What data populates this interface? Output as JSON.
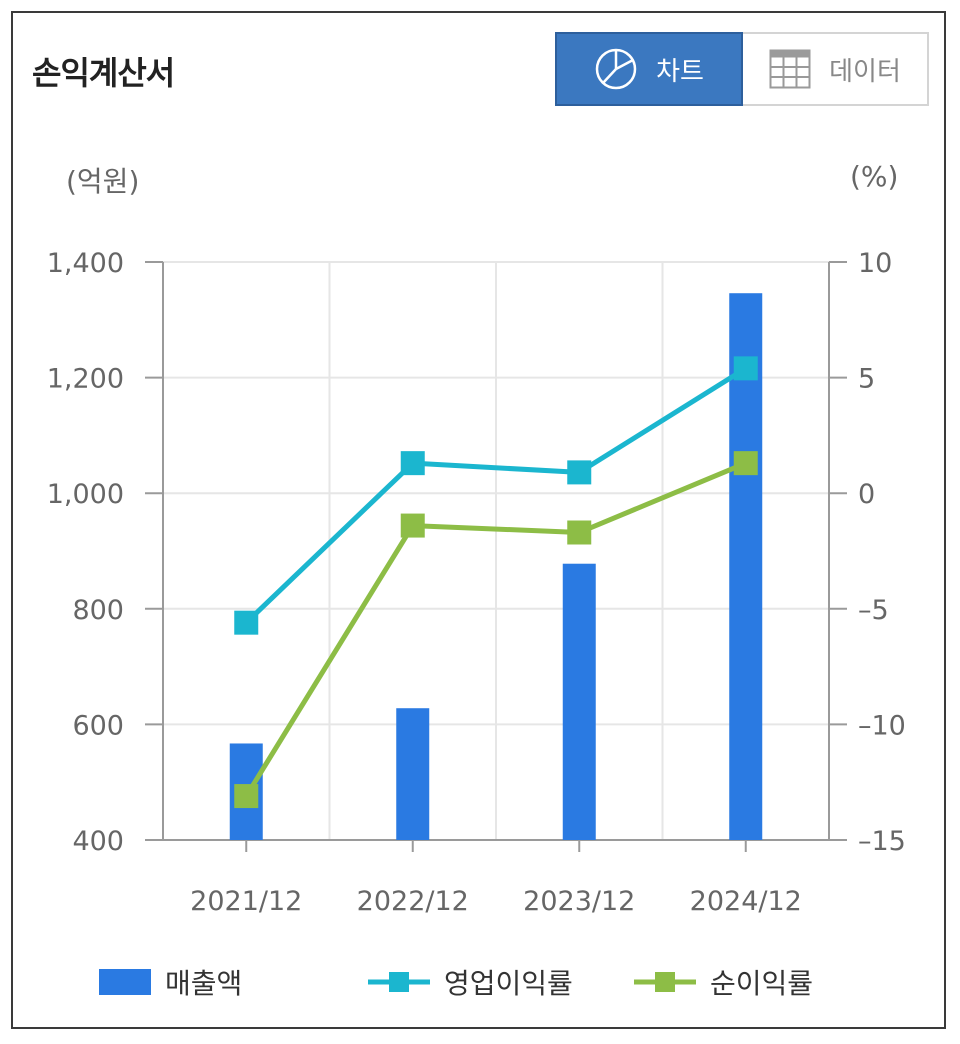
{
  "header": {
    "title": "손익계산서",
    "chart_tab_label": "차트",
    "data_tab_label": "데이터"
  },
  "icons": {
    "chart_tab": "pie-chart-icon",
    "data_tab": "table-grid-icon"
  },
  "colors": {
    "bar": "#2a7ae2",
    "operating": "#1bb6cf",
    "net": "#8dbd46",
    "active_tab": "#3b78c0"
  },
  "chart_data": {
    "type": "bar",
    "title": "",
    "categories": [
      "2021/12",
      "2022/12",
      "2023/12",
      "2024/12"
    ],
    "left_axis": {
      "unit_label": "(억원)",
      "range": [
        400,
        1400
      ],
      "ticks": [
        400,
        600,
        800,
        1000,
        1200,
        1400
      ],
      "tick_labels": [
        "400",
        "600",
        "800",
        "1,000",
        "1,200",
        "1,400"
      ]
    },
    "right_axis": {
      "unit_label": "(%)",
      "range": [
        -15,
        10
      ],
      "ticks": [
        -15,
        -10,
        -5,
        0,
        5,
        10
      ],
      "tick_labels": [
        "-15",
        "-10",
        "-5",
        "0",
        "5",
        "10"
      ]
    },
    "grid": true,
    "legend_position": "bottom",
    "series": [
      {
        "name": "매출액",
        "type": "bar",
        "axis": "left",
        "values": [
          567,
          628,
          878,
          1346
        ]
      },
      {
        "name": "영업이익률",
        "type": "line",
        "axis": "right",
        "values": [
          -5.6,
          1.3,
          0.9,
          5.4
        ]
      },
      {
        "name": "순이익률",
        "type": "line",
        "axis": "right",
        "values": [
          -13.1,
          -1.4,
          -1.7,
          1.3
        ]
      }
    ]
  }
}
